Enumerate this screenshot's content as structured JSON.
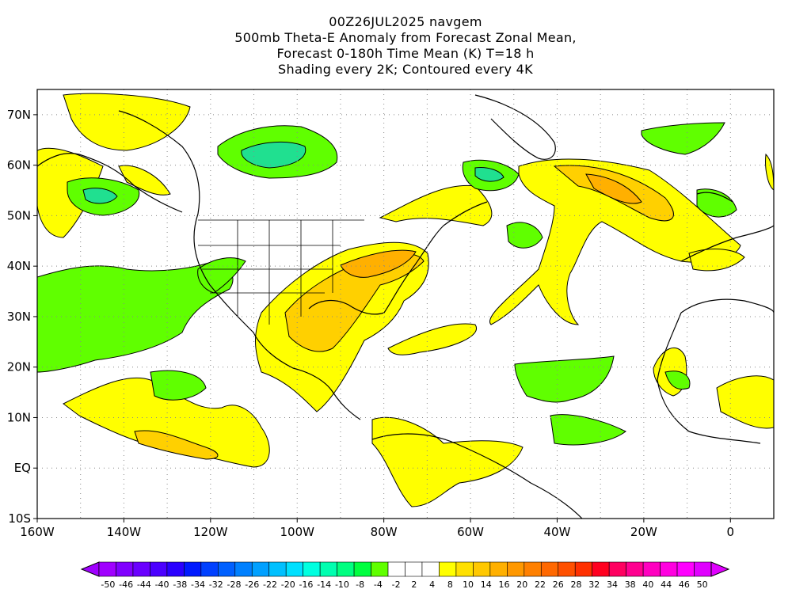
{
  "title": {
    "line1": "00Z26JUL2025 navgem",
    "line2": "500mb Theta-E Anomaly from Forecast Zonal Mean,",
    "line3": "Forecast 0-180h Time Mean (K) T=18 h",
    "line4": "Shading every 2K; Contoured every 4K"
  },
  "axes": {
    "x_ticks": [
      "160W",
      "140W",
      "120W",
      "100W",
      "80W",
      "60W",
      "40W",
      "20W",
      "0"
    ],
    "y_ticks": [
      "70N",
      "60N",
      "50N",
      "40N",
      "30N",
      "20N",
      "10N",
      "EQ",
      "10S"
    ],
    "lon_range": [
      -160,
      10
    ],
    "lat_range": [
      -10,
      75
    ]
  },
  "colorbar": {
    "labels": [
      "-50",
      "-46",
      "-44",
      "-40",
      "-38",
      "-34",
      "-32",
      "-28",
      "-26",
      "-22",
      "-20",
      "-16",
      "-14",
      "-10",
      "-8",
      "-4",
      "-2",
      "2",
      "4",
      "8",
      "10",
      "14",
      "16",
      "20",
      "22",
      "26",
      "28",
      "32",
      "34",
      "38",
      "40",
      "44",
      "46",
      "50"
    ],
    "colors": [
      "#a000ff",
      "#8000ff",
      "#6a00ff",
      "#4b00ff",
      "#2a00ff",
      "#0019ff",
      "#0040ff",
      "#0060ff",
      "#0080ff",
      "#00a0ff",
      "#00c0ff",
      "#00e0ff",
      "#00ffe0",
      "#00ffb0",
      "#00ff80",
      "#00ff40",
      "#60ff00",
      "#ffffff",
      "#ffffff",
      "#ffffff",
      "#ffff00",
      "#ffe000",
      "#ffc800",
      "#ffb000",
      "#ff9800",
      "#ff8000",
      "#ff6800",
      "#ff5000",
      "#ff3000",
      "#ff0020",
      "#ff0060",
      "#ff0090",
      "#ff00c0",
      "#ff00e0",
      "#ff00ff",
      "#e000ff"
    ]
  },
  "colors": {
    "positive_low": "#ffff00",
    "positive_mid": "#ffd800",
    "positive_high": "#ffb000",
    "negative_low": "#60ff00",
    "negative_mid": "#00ff80",
    "negative_high": "#20e0b0"
  }
}
